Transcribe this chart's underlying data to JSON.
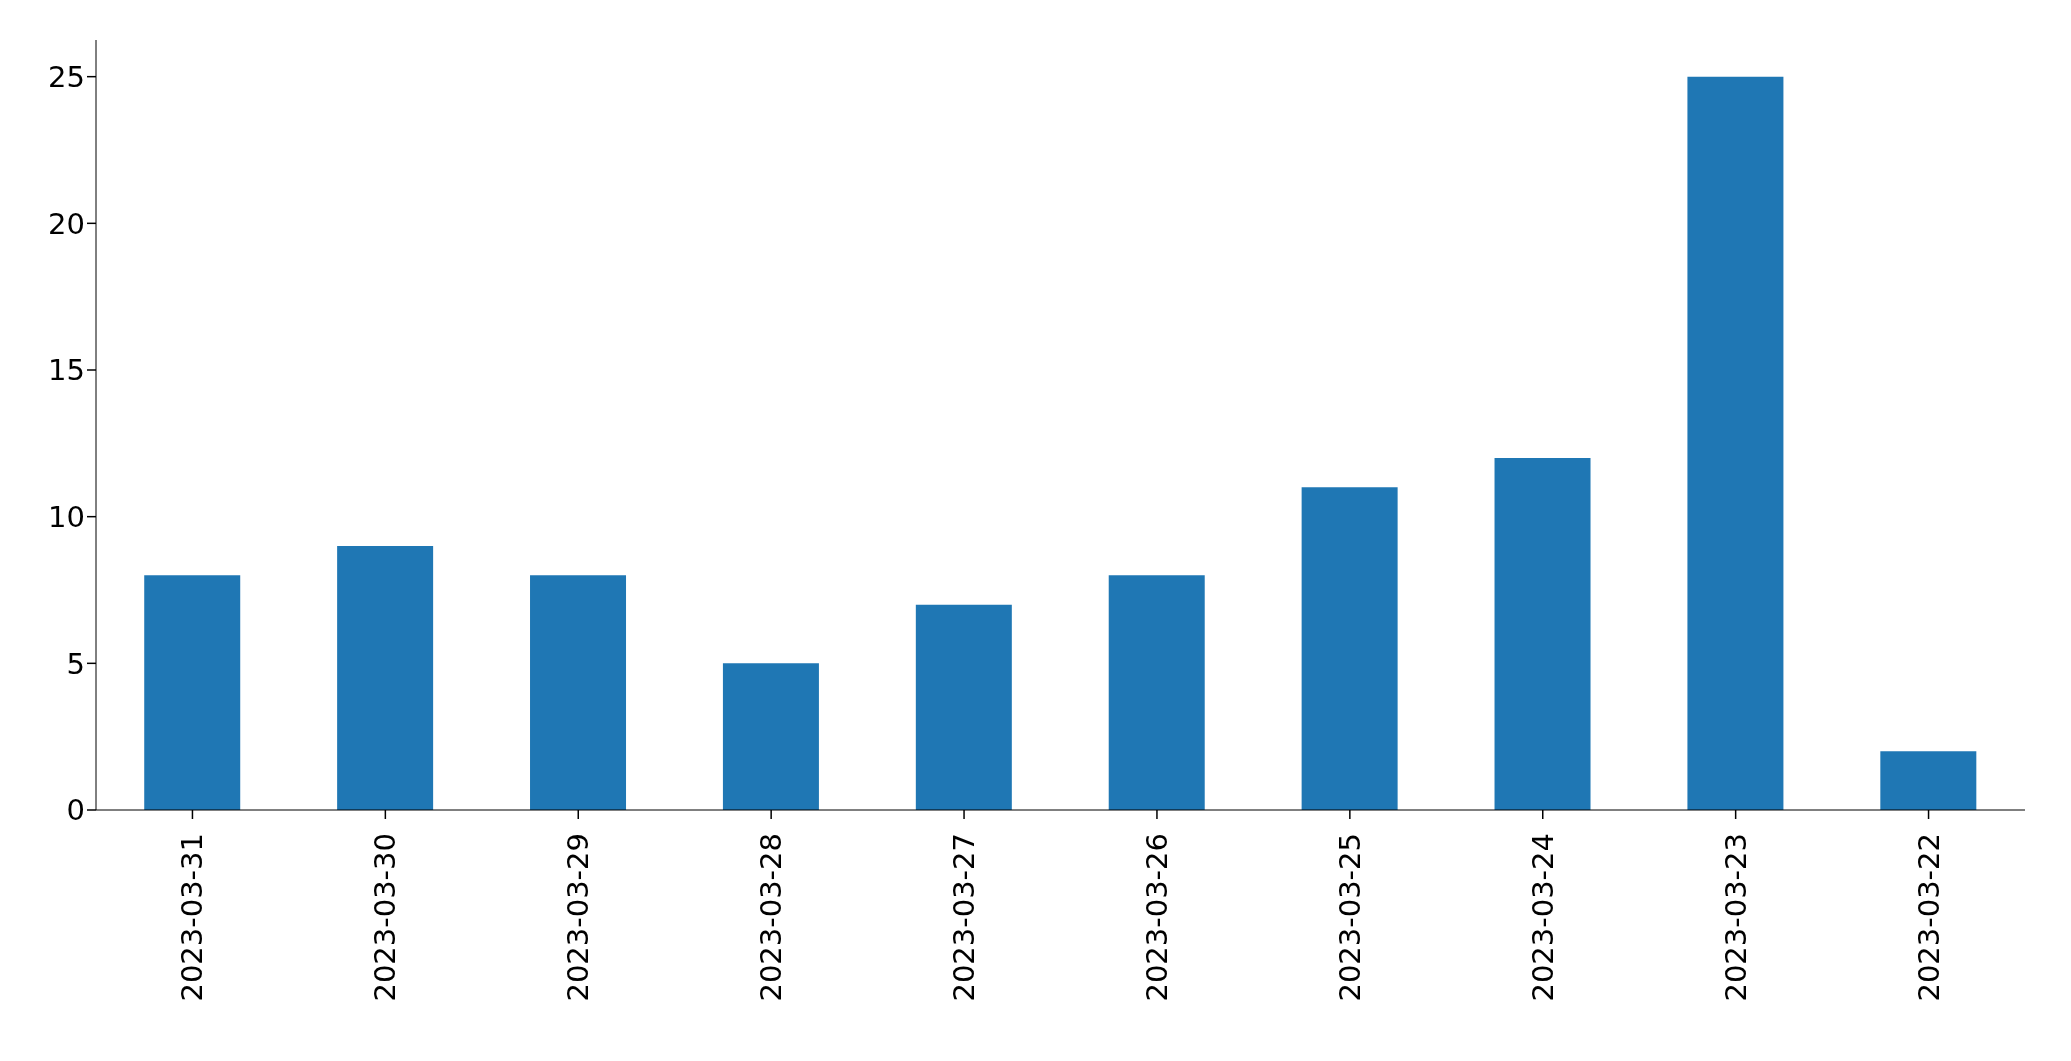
{
  "chart_data": {
    "type": "bar",
    "categories": [
      "2023-03-31",
      "2023-03-30",
      "2023-03-29",
      "2023-03-28",
      "2023-03-27",
      "2023-03-26",
      "2023-03-25",
      "2023-03-24",
      "2023-03-23",
      "2023-03-22"
    ],
    "values": [
      8,
      9,
      8,
      5,
      7,
      8,
      11,
      12,
      25,
      2
    ],
    "color": "#1f77b4",
    "ylim": [
      0,
      26.25
    ],
    "yticks": [
      0,
      5,
      10,
      15,
      20,
      25
    ],
    "grid": false,
    "legend": false
  }
}
